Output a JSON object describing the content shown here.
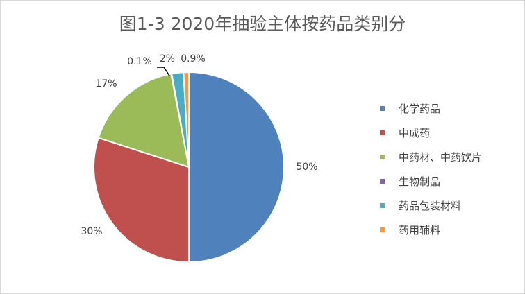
{
  "chart_data": {
    "type": "pie",
    "title": "图1-3 2020年抽验主体按药品类别分",
    "categories": [
      "化学药品",
      "中成药",
      "中药材、中药饮片",
      "生物制品",
      "药品包装材料",
      "药用辅料"
    ],
    "values": [
      50,
      30,
      17,
      0.1,
      2,
      0.9
    ],
    "value_labels": [
      "50%",
      "30%",
      "17%",
      "0.1%",
      "2%",
      "0.9%"
    ],
    "colors": [
      "#4f81bd",
      "#c0504d",
      "#9bbb59",
      "#8064a2",
      "#4bacc6",
      "#f79646"
    ],
    "legend_position": "right"
  }
}
